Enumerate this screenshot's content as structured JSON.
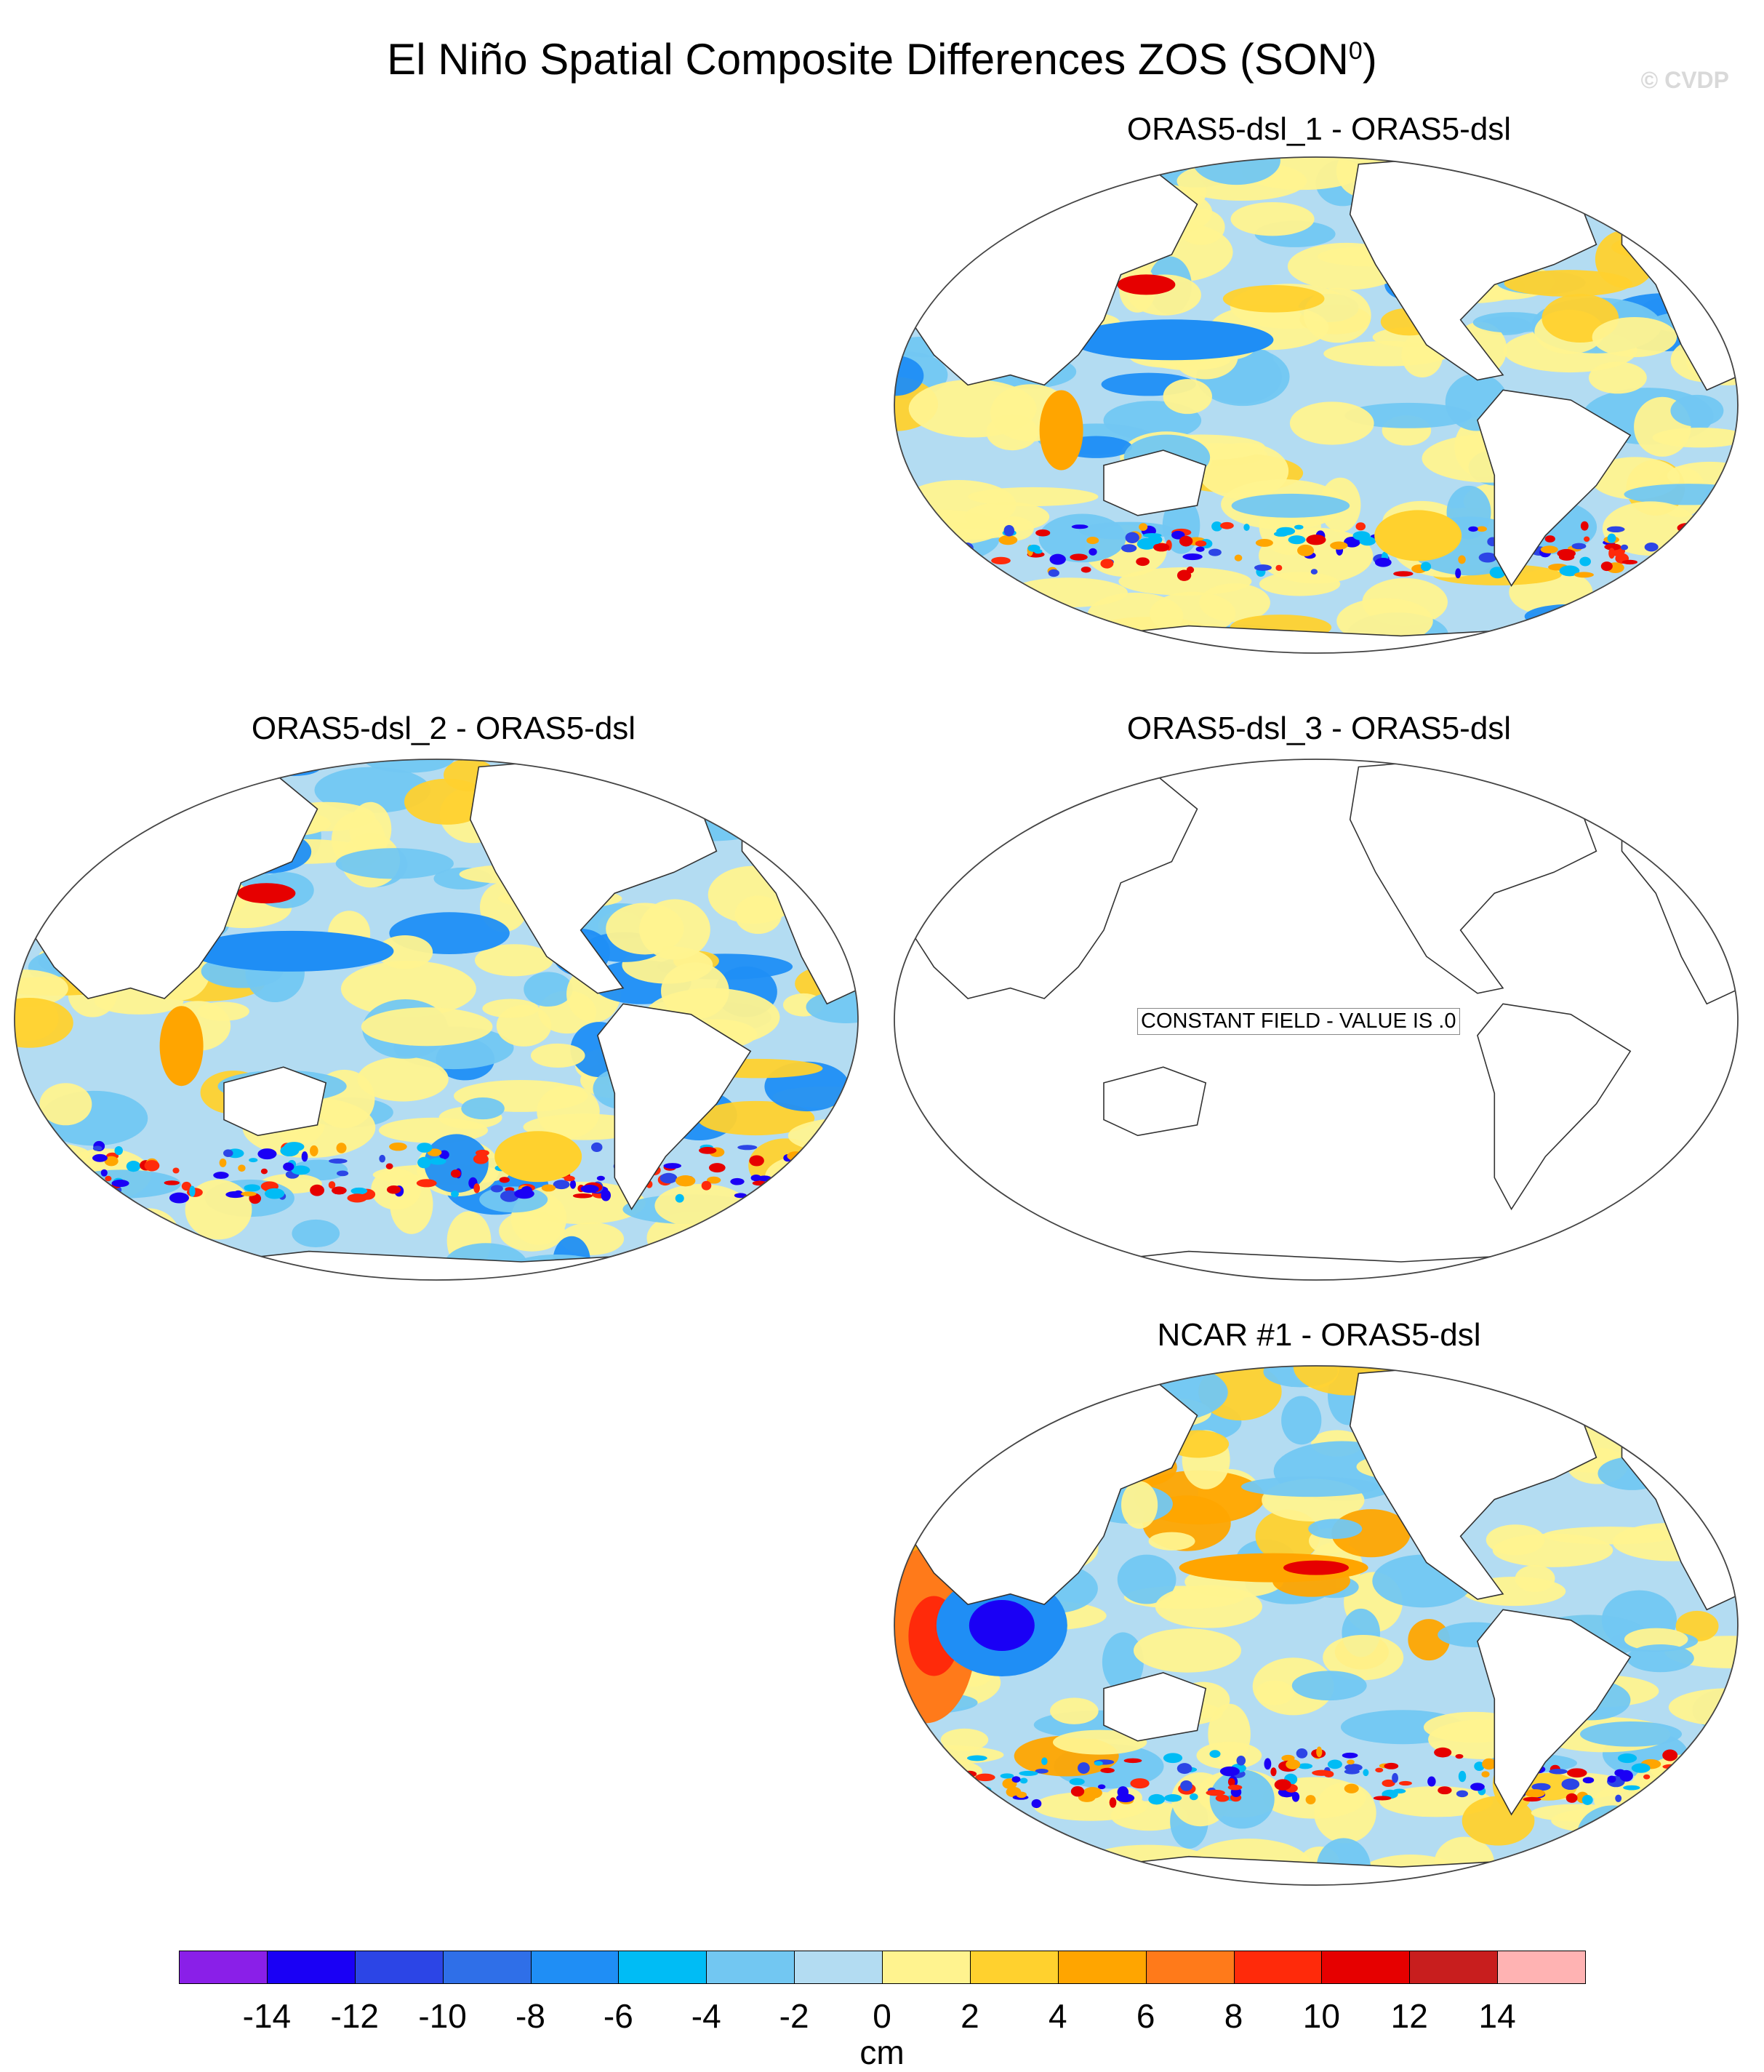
{
  "title": {
    "main": "El Niño Spatial Composite Differences ZOS (SON",
    "superscript": "0",
    "close": ")"
  },
  "watermark": "© CVDP",
  "panels": [
    {
      "id": "p1",
      "title": "ORAS5-dsl_1 - ORAS5-dsl",
      "style": "field"
    },
    {
      "id": "p2",
      "title": "ORAS5-dsl_2 - ORAS5-dsl",
      "style": "field"
    },
    {
      "id": "p3",
      "title": "ORAS5-dsl_3 - ORAS5-dsl",
      "style": "constant",
      "notice": "CONSTANT FIELD - VALUE IS .0"
    },
    {
      "id": "p4",
      "title": "NCAR #1 - ORAS5-dsl",
      "style": "field-strong"
    }
  ],
  "colorbar": {
    "unit": "cm",
    "levels": [
      "-14",
      "-12",
      "-10",
      "-8",
      "-6",
      "-4",
      "-2",
      "0",
      "2",
      "4",
      "6",
      "8",
      "10",
      "12",
      "14"
    ],
    "colors": [
      "#8a1fe8",
      "#1a00f5",
      "#2c45e6",
      "#2f6fe8",
      "#1f8ef5",
      "#00bcf5",
      "#72c7f2",
      "#b3dcf2",
      "#fff38f",
      "#ffd12e",
      "#ffa500",
      "#ff7a1a",
      "#ff2a0a",
      "#e60000",
      "#c81e1e",
      "#ffb3b3"
    ]
  }
}
